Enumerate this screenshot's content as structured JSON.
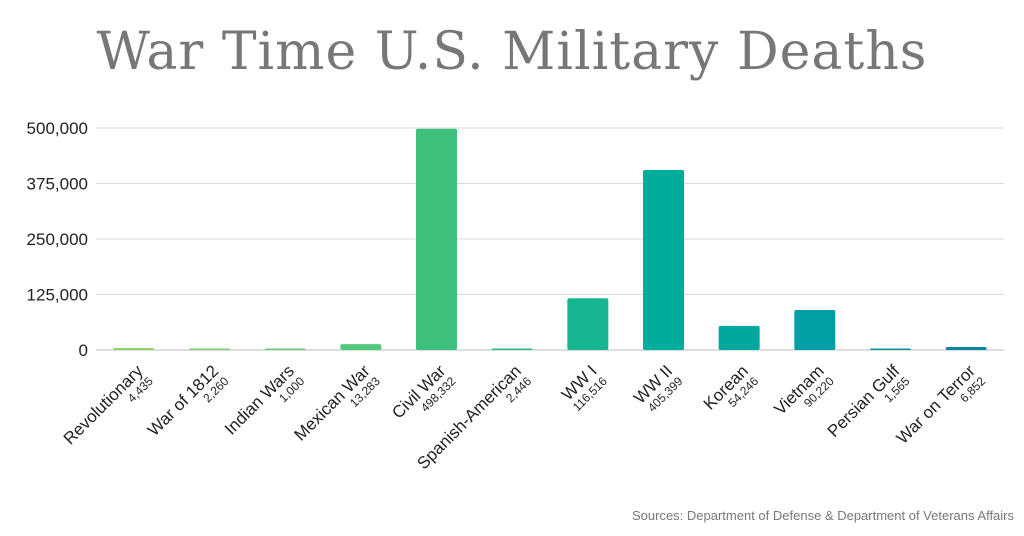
{
  "chart_data": {
    "type": "bar",
    "title": "War Time U.S. Military Deaths",
    "xlabel": "",
    "ylabel": "",
    "ylim": [
      0,
      500000
    ],
    "yticks": [
      0,
      125000,
      250000,
      375000,
      500000
    ],
    "ytick_labels": [
      "0",
      "125,000",
      "250,000",
      "375,000",
      "500,000"
    ],
    "grid": true,
    "categories": [
      "Revolutionary",
      "War of 1812",
      "Indian Wars",
      "Mexican War",
      "Civil War",
      "Spanish-American",
      "WW I",
      "WW II",
      "Korean",
      "Vietnam",
      "Persian Gulf",
      "War on Terror"
    ],
    "values": [
      4435,
      2260,
      1000,
      13283,
      498332,
      2446,
      116516,
      405399,
      54246,
      90220,
      1565,
      6852
    ],
    "value_labels": [
      "4,435",
      "2,260",
      "1,000",
      "13,283",
      "498,332",
      "2,446",
      "116,516",
      "405,399",
      "54,246",
      "90,220",
      "1,565",
      "6,852"
    ],
    "colors": [
      "#8fd16b",
      "#7fcf72",
      "#6fcd79",
      "#52c97a",
      "#3cc07c",
      "#2cba88",
      "#15b690",
      "#00ad9c",
      "#00a8a0",
      "#009fa6",
      "#0a93a6",
      "#0e86a2"
    ]
  },
  "source": "Sources: Department of Defense & Department of Veterans Affairs"
}
